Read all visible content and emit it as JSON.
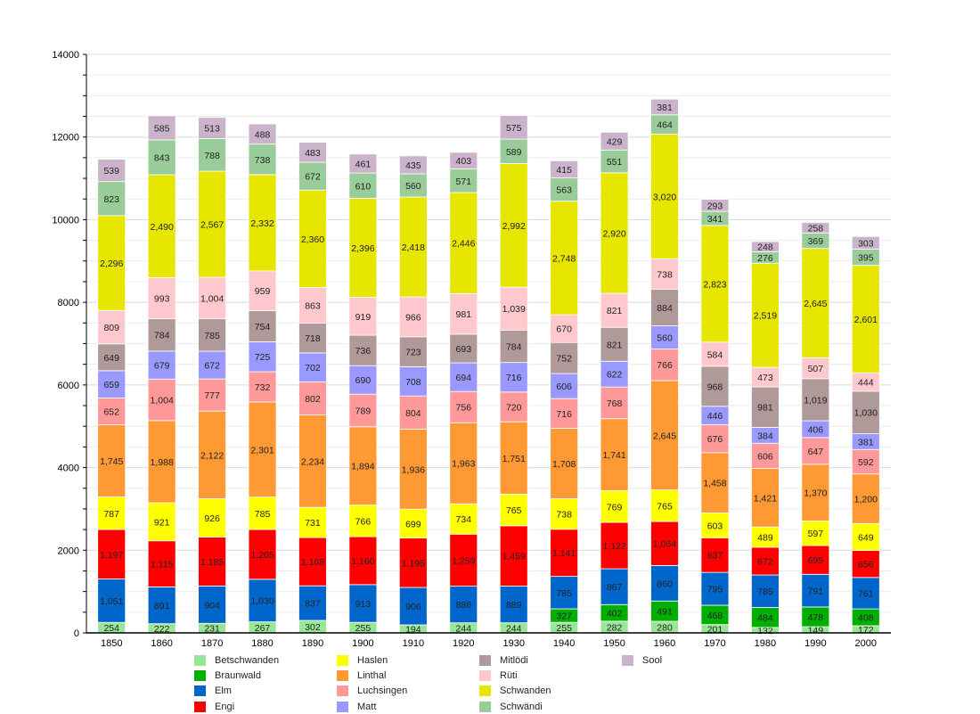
{
  "chart_data": {
    "type": "bar",
    "stacked": true,
    "title": "",
    "xlabel": "",
    "ylabel": "",
    "ylim": [
      0,
      14000
    ],
    "yticks": [
      0,
      2000,
      4000,
      6000,
      8000,
      10000,
      12000,
      14000
    ],
    "grid": true,
    "legend_position": "bottom",
    "categories": [
      "1850",
      "1860",
      "1870",
      "1880",
      "1890",
      "1900",
      "1910",
      "1920",
      "1930",
      "1940",
      "1950",
      "1960",
      "1970",
      "1980",
      "1990",
      "2000"
    ],
    "series": [
      {
        "name": "Betschwanden",
        "color": "#99e699",
        "values": [
          254,
          222,
          231,
          267,
          302,
          255,
          194,
          244,
          244,
          255,
          282,
          280,
          201,
          132,
          149,
          172
        ]
      },
      {
        "name": "Braunwald",
        "color": "#00b000",
        "values": [
          null,
          null,
          null,
          null,
          null,
          null,
          null,
          null,
          null,
          327,
          402,
          491,
          468,
          484,
          478,
          408
        ]
      },
      {
        "name": "Elm",
        "color": "#0066cc",
        "values": [
          1051,
          891,
          904,
          1030,
          837,
          913,
          906,
          886,
          889,
          785,
          867,
          860,
          795,
          785,
          791,
          761
        ]
      },
      {
        "name": "Engi",
        "color": "#ff0000",
        "values": [
          1197,
          1115,
          1185,
          1205,
          1168,
          1160,
          1195,
          1259,
          1459,
          1141,
          1122,
          1064,
          837,
          672,
          695,
          656
        ]
      },
      {
        "name": "Haslen",
        "color": "#ffff00",
        "values": [
          787,
          921,
          926,
          785,
          731,
          766,
          699,
          734,
          765,
          738,
          769,
          765,
          603,
          489,
          597,
          649
        ]
      },
      {
        "name": "Linthal",
        "color": "#ff9933",
        "values": [
          1745,
          1988,
          2122,
          2301,
          2234,
          1894,
          1936,
          1963,
          1751,
          1708,
          1741,
          2645,
          1458,
          1421,
          1370,
          1200
        ]
      },
      {
        "name": "Luchsingen",
        "color": "#ff9999",
        "values": [
          652,
          1004,
          777,
          732,
          802,
          789,
          804,
          756,
          720,
          716,
          768,
          766,
          676,
          606,
          647,
          592
        ]
      },
      {
        "name": "Matt",
        "color": "#9999ff",
        "values": [
          659,
          679,
          672,
          725,
          702,
          690,
          708,
          694,
          716,
          606,
          622,
          560,
          446,
          384,
          406,
          381
        ]
      },
      {
        "name": "Mitlödi",
        "color": "#b09999",
        "values": [
          649,
          784,
          785,
          754,
          718,
          736,
          723,
          693,
          784,
          752,
          821,
          884,
          968,
          981,
          1019,
          1030
        ]
      },
      {
        "name": "Rüti",
        "color": "#ffc8cc",
        "values": [
          809,
          993,
          1004,
          959,
          863,
          919,
          966,
          981,
          1039,
          670,
          821,
          738,
          584,
          473,
          507,
          444
        ]
      },
      {
        "name": "Schwanden",
        "color": "#e6e600",
        "values": [
          2296,
          2490,
          2567,
          2332,
          2360,
          2396,
          2418,
          2446,
          2992,
          2748,
          2920,
          3020,
          2823,
          2519,
          2645,
          2601
        ]
      },
      {
        "name": "Schwändi",
        "color": "#99cc99",
        "values": [
          823,
          843,
          788,
          738,
          672,
          610,
          560,
          571,
          589,
          563,
          551,
          464,
          341,
          276,
          369,
          395
        ]
      },
      {
        "name": "Sool",
        "color": "#ccb3cc",
        "values": [
          539,
          585,
          513,
          488,
          483,
          461,
          435,
          403,
          575,
          415,
          429,
          381,
          293,
          248,
          258,
          303
        ]
      }
    ]
  }
}
